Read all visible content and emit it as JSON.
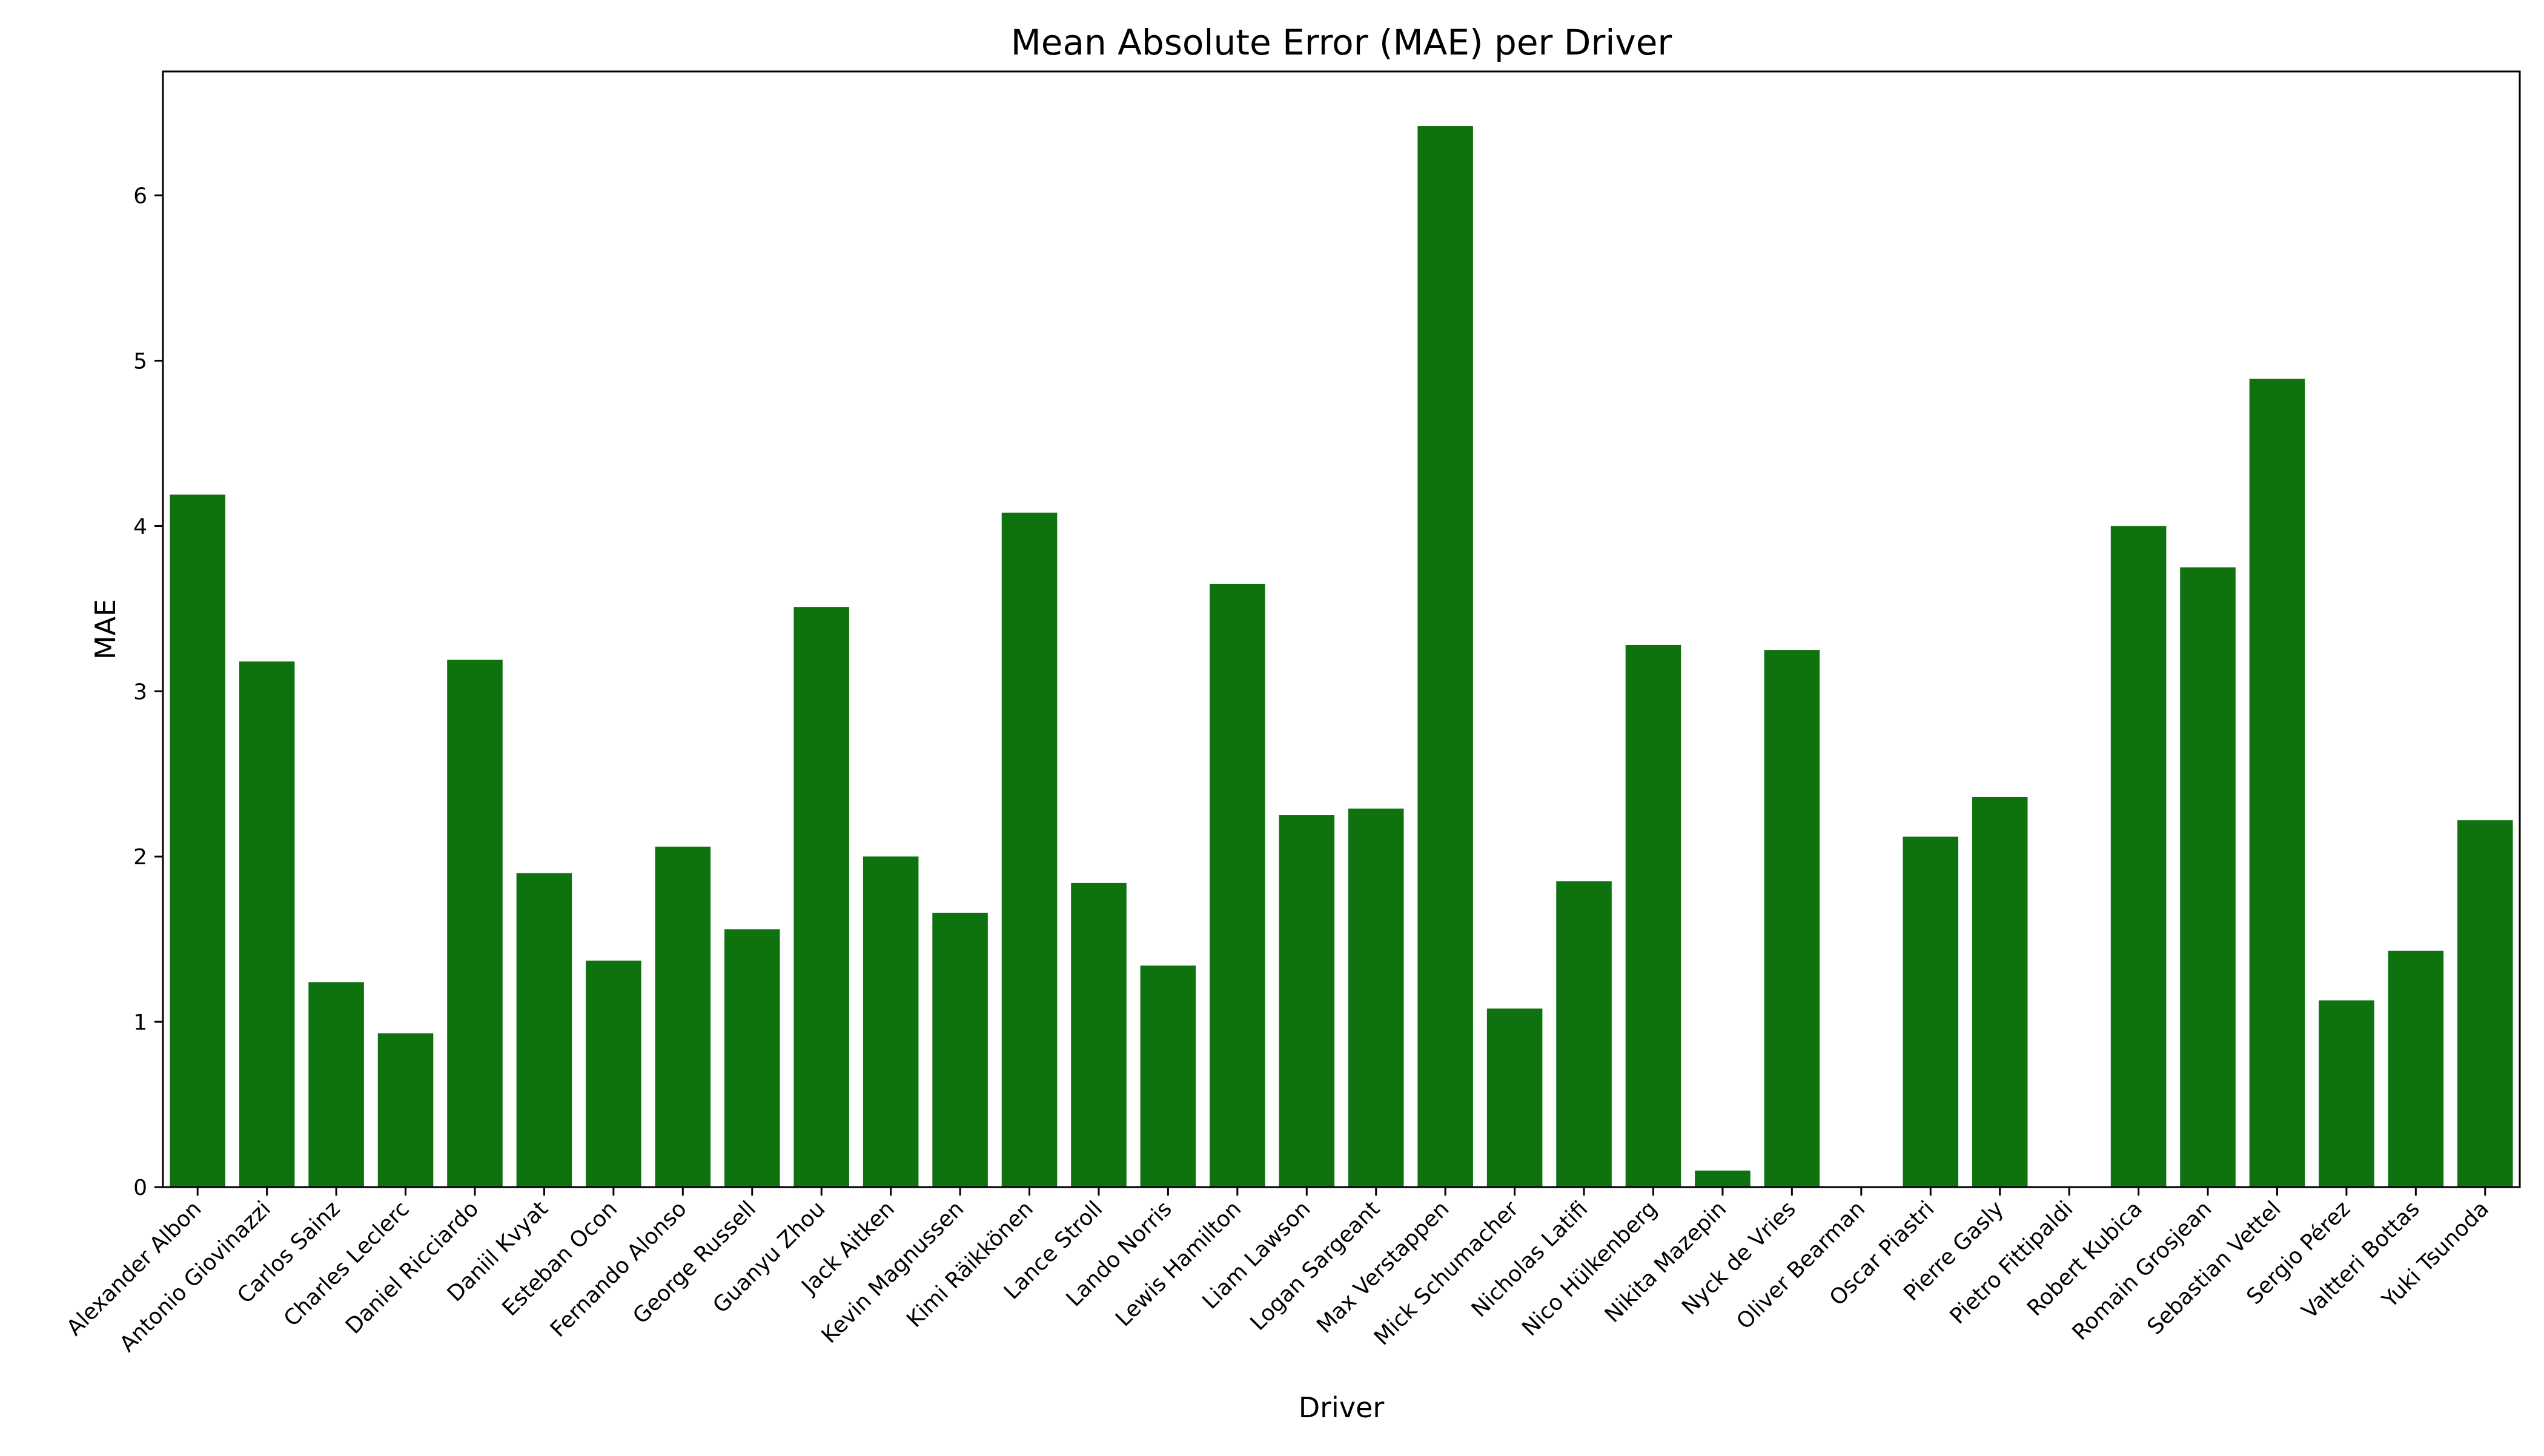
{
  "chart_data": {
    "type": "bar",
    "title": "Mean Absolute Error (MAE) per Driver",
    "xlabel": "Driver",
    "ylabel": "MAE",
    "ylim": [
      0,
      6.75
    ],
    "yticks": [
      0,
      1,
      2,
      3,
      4,
      5,
      6
    ],
    "grid": false,
    "legend": "none",
    "bar_color": "#0e730e",
    "categories": [
      "Alexander Albon",
      "Antonio Giovinazzi",
      "Carlos Sainz",
      "Charles Leclerc",
      "Daniel Ricciardo",
      "Daniil Kvyat",
      "Esteban Ocon",
      "Fernando Alonso",
      "George Russell",
      "Guanyu Zhou",
      "Jack Aitken",
      "Kevin Magnussen",
      "Kimi Räikkönen",
      "Lance Stroll",
      "Lando Norris",
      "Lewis Hamilton",
      "Liam Lawson",
      "Logan Sargeant",
      "Max Verstappen",
      "Mick Schumacher",
      "Nicholas Latifi",
      "Nico Hülkenberg",
      "Nikita Mazepin",
      "Nyck de Vries",
      "Oliver Bearman",
      "Oscar Piastri",
      "Pierre Gasly",
      "Pietro Fittipaldi",
      "Robert Kubica",
      "Romain Grosjean",
      "Sebastian Vettel",
      "Sergio Pérez",
      "Valtteri Bottas",
      "Yuki Tsunoda"
    ],
    "values": [
      4.19,
      3.18,
      1.24,
      0.93,
      3.19,
      1.9,
      1.37,
      2.06,
      1.56,
      3.51,
      2.0,
      1.66,
      4.08,
      1.84,
      1.34,
      3.65,
      2.25,
      2.29,
      6.42,
      1.08,
      1.85,
      3.28,
      0.1,
      3.25,
      0.0,
      2.12,
      2.36,
      0.0,
      4.0,
      3.75,
      4.89,
      1.13,
      1.43,
      2.22
    ]
  }
}
